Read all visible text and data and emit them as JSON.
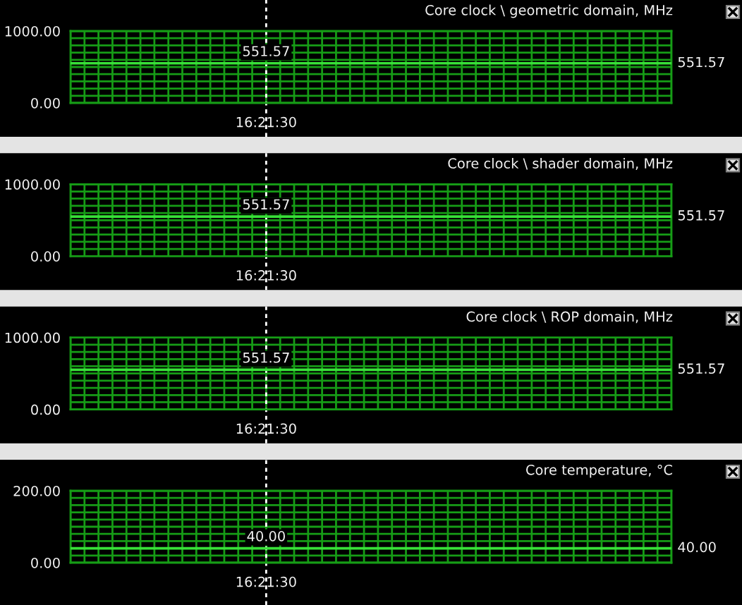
{
  "chart_data": [
    {
      "type": "line",
      "title": "Core clock \\ geometric domain, MHz",
      "categories": [
        null,
        null,
        null,
        null,
        null,
        null,
        null,
        null,
        null,
        null,
        null,
        null,
        null,
        null,
        "16:21:30",
        null,
        null,
        null,
        null,
        null,
        null,
        null,
        null,
        null,
        null,
        null,
        null,
        null,
        null,
        null,
        null,
        null,
        null,
        null,
        null,
        null,
        null,
        null,
        null,
        null,
        null,
        null,
        null,
        null
      ],
      "series": [
        {
          "color": "#38e038",
          "values": [
            551.57,
            551.57,
            551.57,
            551.57,
            551.57,
            551.57,
            551.57,
            551.57,
            551.57,
            551.57,
            551.57,
            551.57,
            551.57,
            551.57,
            551.57,
            551.57,
            551.57,
            551.57,
            551.57,
            551.57,
            551.57,
            551.57,
            551.57,
            551.57,
            551.57,
            551.57,
            551.57,
            551.57,
            551.57,
            551.57,
            551.57,
            551.57,
            551.57,
            551.57,
            551.57,
            551.57,
            551.57,
            551.57,
            551.57,
            551.57,
            551.57,
            551.57,
            551.57,
            551.57
          ]
        }
      ],
      "ylim": [
        0,
        1000
      ],
      "yticks": [
        {
          "value": 0,
          "label": "0.00"
        },
        {
          "value": 100,
          "label": null
        },
        {
          "value": 200,
          "label": null
        },
        {
          "value": 300,
          "label": null
        },
        {
          "value": 400,
          "label": null
        },
        {
          "value": 500,
          "label": null
        },
        {
          "value": 600,
          "label": null
        },
        {
          "value": 700,
          "label": null
        },
        {
          "value": 800,
          "label": null
        },
        {
          "value": 900,
          "label": null
        },
        {
          "value": 1000,
          "label": "1000.00"
        }
      ],
      "ref_lines": [
        {
          "axis": "x",
          "value": "16:21:30",
          "color": "#ffffff",
          "line_style": "dashed"
        }
      ],
      "annotations": [
        {
          "text": "551.57",
          "x": "16:21:30",
          "y": 551.57
        },
        "551.57"
      ],
      "grid": true,
      "marker": "none",
      "line_style": "solid"
    },
    {
      "type": "line",
      "title": "Core clock \\ shader domain, MHz",
      "categories": [
        null,
        null,
        null,
        null,
        null,
        null,
        null,
        null,
        null,
        null,
        null,
        null,
        null,
        null,
        "16:21:30",
        null,
        null,
        null,
        null,
        null,
        null,
        null,
        null,
        null,
        null,
        null,
        null,
        null,
        null,
        null,
        null,
        null,
        null,
        null,
        null,
        null,
        null,
        null,
        null,
        null,
        null,
        null,
        null,
        null
      ],
      "series": [
        {
          "color": "#38e038",
          "values": [
            551.57,
            551.57,
            551.57,
            551.57,
            551.57,
            551.57,
            551.57,
            551.57,
            551.57,
            551.57,
            551.57,
            551.57,
            551.57,
            551.57,
            551.57,
            551.57,
            551.57,
            551.57,
            551.57,
            551.57,
            551.57,
            551.57,
            551.57,
            551.57,
            551.57,
            551.57,
            551.57,
            551.57,
            551.57,
            551.57,
            551.57,
            551.57,
            551.57,
            551.57,
            551.57,
            551.57,
            551.57,
            551.57,
            551.57,
            551.57,
            551.57,
            551.57,
            551.57,
            551.57
          ]
        }
      ],
      "ylim": [
        0,
        1000
      ],
      "yticks": [
        {
          "value": 0,
          "label": "0.00"
        },
        {
          "value": 100,
          "label": null
        },
        {
          "value": 200,
          "label": null
        },
        {
          "value": 300,
          "label": null
        },
        {
          "value": 400,
          "label": null
        },
        {
          "value": 500,
          "label": null
        },
        {
          "value": 600,
          "label": null
        },
        {
          "value": 700,
          "label": null
        },
        {
          "value": 800,
          "label": null
        },
        {
          "value": 900,
          "label": null
        },
        {
          "value": 1000,
          "label": "1000.00"
        }
      ],
      "ref_lines": [
        {
          "axis": "x",
          "value": "16:21:30",
          "color": "#ffffff",
          "line_style": "dashed"
        }
      ],
      "annotations": [
        {
          "text": "551.57",
          "x": "16:21:30",
          "y": 551.57
        },
        "551.57"
      ],
      "grid": true,
      "marker": "none",
      "line_style": "solid"
    },
    {
      "type": "line",
      "title": "Core clock \\ ROP domain, MHz",
      "categories": [
        null,
        null,
        null,
        null,
        null,
        null,
        null,
        null,
        null,
        null,
        null,
        null,
        null,
        null,
        "16:21:30",
        null,
        null,
        null,
        null,
        null,
        null,
        null,
        null,
        null,
        null,
        null,
        null,
        null,
        null,
        null,
        null,
        null,
        null,
        null,
        null,
        null,
        null,
        null,
        null,
        null,
        null,
        null,
        null,
        null
      ],
      "series": [
        {
          "color": "#38e038",
          "values": [
            551.57,
            551.57,
            551.57,
            551.57,
            551.57,
            551.57,
            551.57,
            551.57,
            551.57,
            551.57,
            551.57,
            551.57,
            551.57,
            551.57,
            551.57,
            551.57,
            551.57,
            551.57,
            551.57,
            551.57,
            551.57,
            551.57,
            551.57,
            551.57,
            551.57,
            551.57,
            551.57,
            551.57,
            551.57,
            551.57,
            551.57,
            551.57,
            551.57,
            551.57,
            551.57,
            551.57,
            551.57,
            551.57,
            551.57,
            551.57,
            551.57,
            551.57,
            551.57,
            551.57
          ]
        }
      ],
      "ylim": [
        0,
        1000
      ],
      "yticks": [
        {
          "value": 0,
          "label": "0.00"
        },
        {
          "value": 100,
          "label": null
        },
        {
          "value": 200,
          "label": null
        },
        {
          "value": 300,
          "label": null
        },
        {
          "value": 400,
          "label": null
        },
        {
          "value": 500,
          "label": null
        },
        {
          "value": 600,
          "label": null
        },
        {
          "value": 700,
          "label": null
        },
        {
          "value": 800,
          "label": null
        },
        {
          "value": 900,
          "label": null
        },
        {
          "value": 1000,
          "label": "1000.00"
        }
      ],
      "ref_lines": [
        {
          "axis": "x",
          "value": "16:21:30",
          "color": "#ffffff",
          "line_style": "dashed"
        }
      ],
      "annotations": [
        {
          "text": "551.57",
          "x": "16:21:30",
          "y": 551.57
        },
        "551.57"
      ],
      "grid": true,
      "marker": "none",
      "line_style": "solid"
    },
    {
      "type": "line",
      "title": "Core temperature, °C",
      "categories": [
        null,
        null,
        null,
        null,
        null,
        null,
        null,
        null,
        null,
        null,
        null,
        null,
        null,
        null,
        "16:21:30",
        null,
        null,
        null,
        null,
        null,
        null,
        null,
        null,
        null,
        null,
        null,
        null,
        null,
        null,
        null,
        null,
        null,
        null,
        null,
        null,
        null,
        null,
        null,
        null,
        null,
        null,
        null,
        null,
        null
      ],
      "series": [
        {
          "color": "#38e038",
          "values": [
            40,
            40,
            40,
            40,
            40,
            40,
            40,
            40,
            40,
            40,
            40,
            40,
            40,
            40,
            40,
            40,
            40,
            40,
            40,
            40,
            40,
            40,
            40,
            40,
            40,
            40,
            40,
            40,
            40,
            40,
            40,
            40,
            40,
            40,
            40,
            40,
            40,
            40,
            40,
            40,
            40,
            40,
            40,
            40
          ]
        }
      ],
      "ylim": [
        0,
        200
      ],
      "yticks": [
        {
          "value": 0,
          "label": "0.00"
        },
        {
          "value": 20,
          "label": null
        },
        {
          "value": 60,
          "label": null
        },
        {
          "value": 80,
          "label": null
        },
        {
          "value": 100,
          "label": null
        },
        {
          "value": 120,
          "label": null
        },
        {
          "value": 140,
          "label": null
        },
        {
          "value": 160,
          "label": null
        },
        {
          "value": 180,
          "label": null
        },
        {
          "value": 200,
          "label": "200.00"
        }
      ],
      "ref_lines": [
        {
          "axis": "x",
          "value": "16:21:30",
          "color": "#ffffff",
          "line_style": "dashed"
        }
      ],
      "annotations": [
        {
          "text": "40.00",
          "x": "16:21:30",
          "y": 40
        },
        "40.00"
      ],
      "grid": true,
      "marker": "none",
      "line_style": "solid"
    }
  ]
}
